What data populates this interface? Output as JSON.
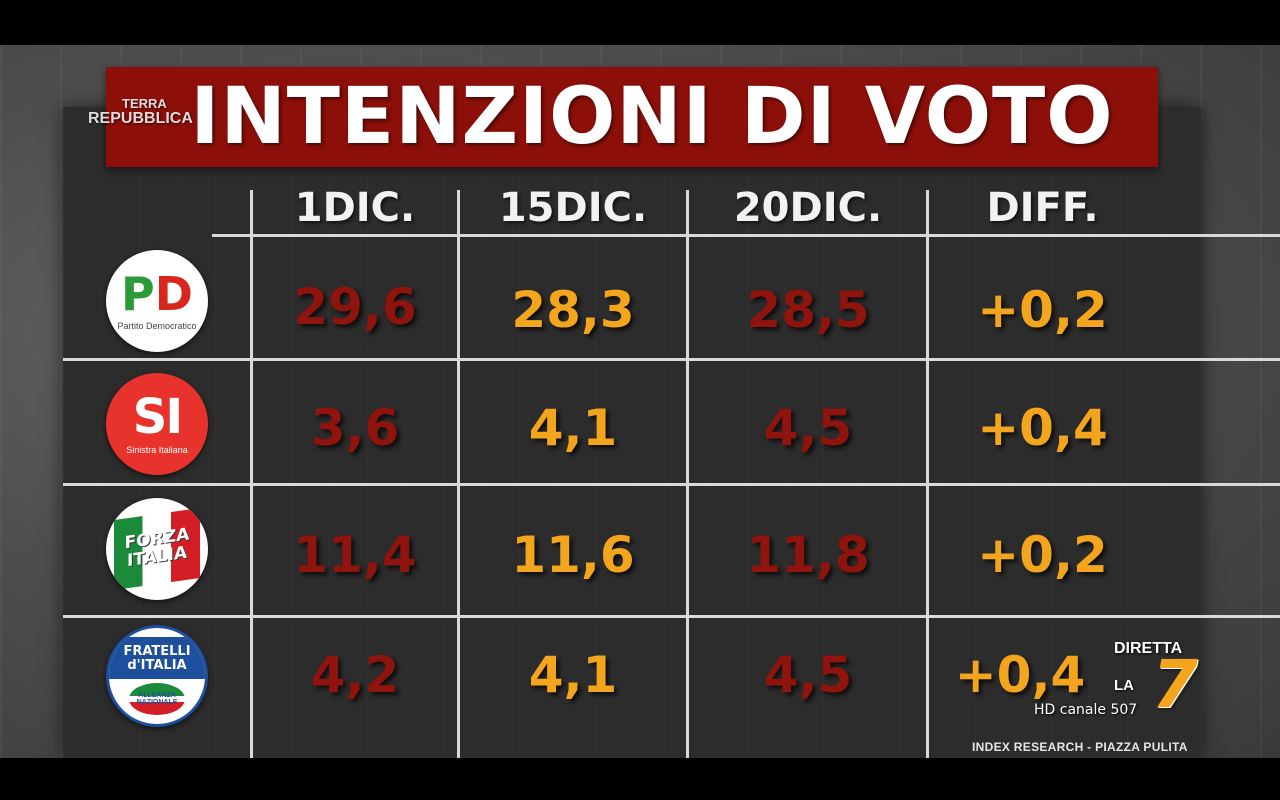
{
  "title": "INTENZIONI DI VOTO",
  "watermark": {
    "line1": "TERRA",
    "line2": "REPUBBLICA"
  },
  "columns": [
    "1DIC.",
    "15DIC.",
    "20DIC.",
    "DIFF."
  ],
  "parties": [
    {
      "logo_text": "PD",
      "logo_caption": "Partito Democratico",
      "values": [
        "29,6",
        "28,3",
        "28,5",
        "+0,2"
      ]
    },
    {
      "logo_text": "SI",
      "logo_caption": "Sinistra Italiana",
      "values": [
        "3,6",
        "4,1",
        "4,5",
        "+0,4"
      ]
    },
    {
      "logo_text": "FORZA ITALIA",
      "logo_caption": "",
      "values": [
        "11,4",
        "11,6",
        "11,8",
        "+0,2"
      ]
    },
    {
      "logo_text": "FRATELLI d'ITALIA",
      "logo_caption": "ALLEANZA NAZIONALE",
      "values": [
        "4,2",
        "4,1",
        "4,5",
        "+0,4"
      ]
    }
  ],
  "source": "INDEX RESEARCH  - PIAZZA PULITA",
  "channel": {
    "live": "DIRETTA",
    "la": "LA",
    "seven": "7",
    "hd": "HD canale 507"
  },
  "colors": {
    "banner": "#8c0f09",
    "dark_value": "#8e140d",
    "orange_value": "#f3a51d",
    "board": "#2c2c2c"
  }
}
